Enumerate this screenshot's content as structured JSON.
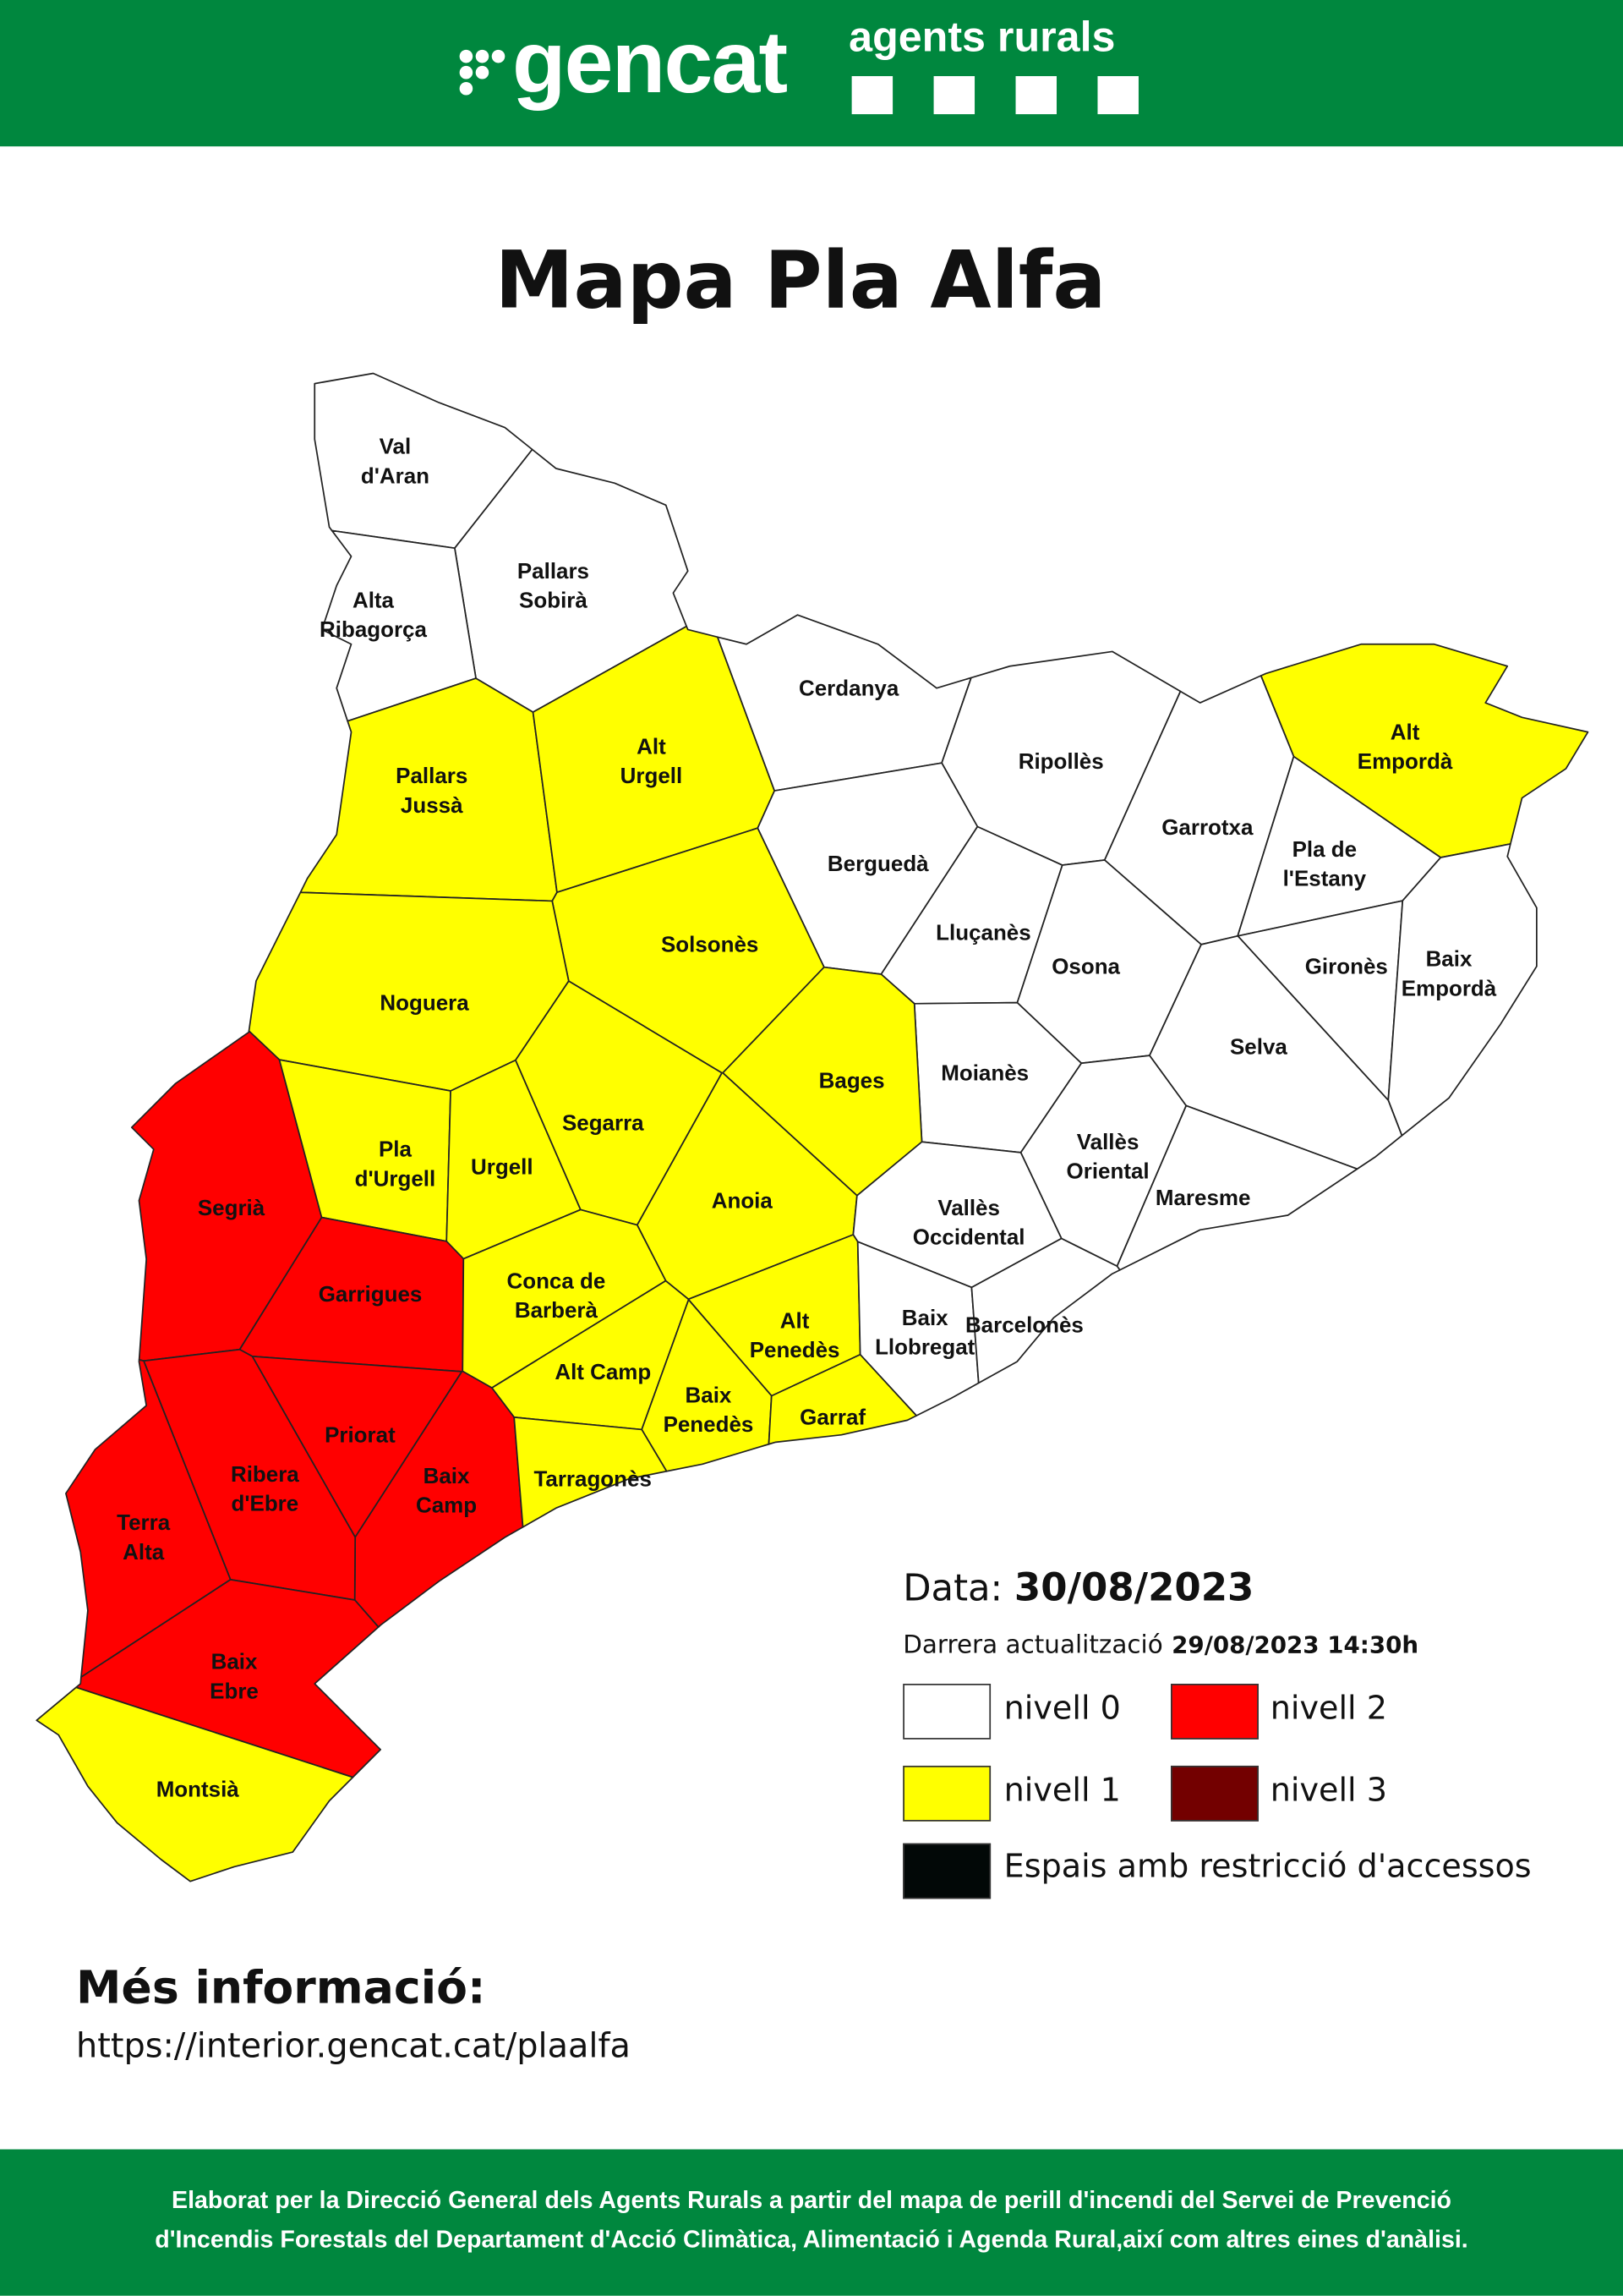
{
  "header": {
    "brand": "gencat",
    "unit": "agents rurals",
    "brand_color": "#00873e"
  },
  "title": "Mapa Pla Alfa",
  "levels": {
    "0": "#ffffff",
    "1": "#ffff00",
    "2": "#ff0000",
    "3": "#730000",
    "restricted": "#020807"
  },
  "comarques": [
    {
      "name": "Val d'Aran",
      "lines": [
        "Val",
        "d'Aran"
      ],
      "level": 0
    },
    {
      "name": "Pallars Sobirà",
      "lines": [
        "Pallars",
        "Sobirà"
      ],
      "level": 0
    },
    {
      "name": "Alta Ribagorça",
      "lines": [
        "Alta",
        "Ribagorça"
      ],
      "level": 0
    },
    {
      "name": "Pallars Jussà",
      "lines": [
        "Pallars",
        "Jussà"
      ],
      "level": 1
    },
    {
      "name": "Alt Urgell",
      "lines": [
        "Alt",
        "Urgell"
      ],
      "level": 1
    },
    {
      "name": "Cerdanya",
      "lines": [
        "Cerdanya"
      ],
      "level": 0
    },
    {
      "name": "Ripollès",
      "lines": [
        "Ripollès"
      ],
      "level": 0
    },
    {
      "name": "Alt Empordà",
      "lines": [
        "Alt",
        "Empordà"
      ],
      "level": 1
    },
    {
      "name": "Garrotxa",
      "lines": [
        "Garrotxa"
      ],
      "level": 0
    },
    {
      "name": "Pla de l'Estany",
      "lines": [
        "Pla de",
        "l'Estany"
      ],
      "level": 0
    },
    {
      "name": "Berguedà",
      "lines": [
        "Berguedà"
      ],
      "level": 0
    },
    {
      "name": "Solsonès",
      "lines": [
        "Solsonès"
      ],
      "level": 1
    },
    {
      "name": "Lluçanès",
      "lines": [
        "Lluçanès"
      ],
      "level": 0
    },
    {
      "name": "Osona",
      "lines": [
        "Osona"
      ],
      "level": 0
    },
    {
      "name": "Gironès",
      "lines": [
        "Gironès"
      ],
      "level": 0
    },
    {
      "name": "Baix Empordà",
      "lines": [
        "Baix",
        "Empordà"
      ],
      "level": 0
    },
    {
      "name": "Noguera",
      "lines": [
        "Noguera"
      ],
      "level": 1
    },
    {
      "name": "Selva",
      "lines": [
        "Selva"
      ],
      "level": 0
    },
    {
      "name": "Moianès",
      "lines": [
        "Moianès"
      ],
      "level": 0
    },
    {
      "name": "Bages",
      "lines": [
        "Bages"
      ],
      "level": 1
    },
    {
      "name": "Segrià",
      "lines": [
        "Segrià"
      ],
      "level": 2
    },
    {
      "name": "Pla d'Urgell",
      "lines": [
        "Pla",
        "d'Urgell"
      ],
      "level": 1
    },
    {
      "name": "Urgell",
      "lines": [
        "Urgell"
      ],
      "level": 1
    },
    {
      "name": "Segarra",
      "lines": [
        "Segarra"
      ],
      "level": 1
    },
    {
      "name": "Anoia",
      "lines": [
        "Anoia"
      ],
      "level": 1
    },
    {
      "name": "Vallès Oriental",
      "lines": [
        "Vallès",
        "Oriental"
      ],
      "level": 0
    },
    {
      "name": "Maresme",
      "lines": [
        "Maresme"
      ],
      "level": 0
    },
    {
      "name": "Vallès Occidental",
      "lines": [
        "Vallès",
        "Occidental"
      ],
      "level": 0
    },
    {
      "name": "Garrigues",
      "lines": [
        "Garrigues"
      ],
      "level": 2
    },
    {
      "name": "Conca de Barberà",
      "lines": [
        "Conca de",
        "Barberà"
      ],
      "level": 1
    },
    {
      "name": "Alt Camp",
      "lines": [
        "Alt Camp"
      ],
      "level": 1
    },
    {
      "name": "Alt Penedès",
      "lines": [
        "Alt",
        "Penedès"
      ],
      "level": 1
    },
    {
      "name": "Baix Llobregat",
      "lines": [
        "Baix",
        "Llobregat"
      ],
      "level": 0
    },
    {
      "name": "Barcelonès",
      "lines": [
        "Barcelonès"
      ],
      "level": 0
    },
    {
      "name": "Baix Penedès",
      "lines": [
        "Baix",
        "Penedès"
      ],
      "level": 1
    },
    {
      "name": "Garraf",
      "lines": [
        "Garraf"
      ],
      "level": 1
    },
    {
      "name": "Priorat",
      "lines": [
        "Priorat"
      ],
      "level": 2
    },
    {
      "name": "Baix Camp",
      "lines": [
        "Baix",
        "Camp"
      ],
      "level": 2
    },
    {
      "name": "Tarragonès",
      "lines": [
        "Tarragonès"
      ],
      "level": 1
    },
    {
      "name": "Ribera d'Ebre",
      "lines": [
        "Ribera",
        "d'Ebre"
      ],
      "level": 2
    },
    {
      "name": "Terra Alta",
      "lines": [
        "Terra",
        "Alta"
      ],
      "level": 2
    },
    {
      "name": "Baix Ebre",
      "lines": [
        "Baix",
        "Ebre"
      ],
      "level": 2
    },
    {
      "name": "Montsià",
      "lines": [
        "Montsià"
      ],
      "level": 1
    }
  ],
  "legend": {
    "date_label": "Data:",
    "date": "30/08/2023",
    "update_label": "Darrera actualització",
    "update": "29/08/2023 14:30h",
    "items": [
      {
        "label": "nivell 0",
        "color": "#ffffff"
      },
      {
        "label": "nivell 2",
        "color": "#ff0000"
      },
      {
        "label": "nivell 1",
        "color": "#ffff00"
      },
      {
        "label": "nivell 3",
        "color": "#730000"
      },
      {
        "label": "Espais amb restricció d'accessos",
        "color": "#020807"
      }
    ]
  },
  "more_info": {
    "heading": "Més informació:",
    "url": "https://interior.gencat.cat/plaalfa"
  },
  "footer": {
    "line1": "Elaborat per la Direcció General dels Agents Rurals a partir del mapa de perill d'incendi del Servei de Prevenció",
    "line2": "d'Incendis Forestals del Departament d'Acció Climàtica, Alimentació i Agenda Rural,així com altres eines d'anàlisi."
  }
}
